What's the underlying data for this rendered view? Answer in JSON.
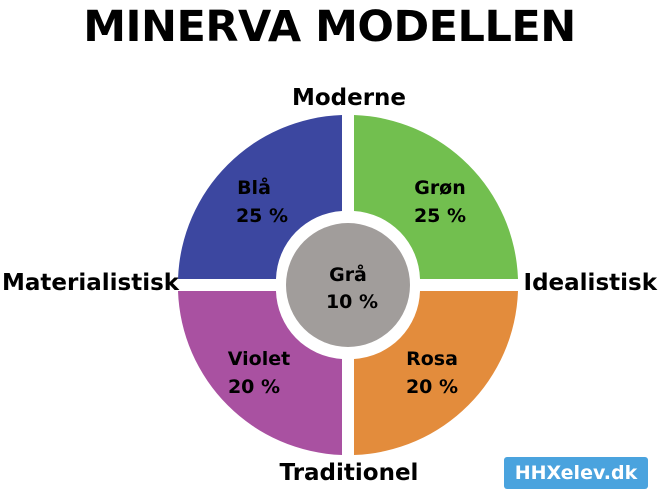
{
  "title": "MINERVA MODELLEN",
  "axes": {
    "top": "Moderne",
    "bottom": "Traditionel",
    "left": "Materialistisk",
    "right": "Idealistisk"
  },
  "segments": [
    {
      "id": "blaa",
      "name": "Blå",
      "percent": "25 %",
      "color": "#3c47a0"
    },
    {
      "id": "groen",
      "name": "Grøn",
      "percent": "25 %",
      "color": "#72bf4f"
    },
    {
      "id": "violet",
      "name": "Violet",
      "percent": "20 %",
      "color": "#a951a1"
    },
    {
      "id": "rosa",
      "name": "Rosa",
      "percent": "20 %",
      "color": "#e38c3c"
    }
  ],
  "center": {
    "name": "Grå",
    "percent": "10 %",
    "color": "#a19d9b"
  },
  "badge": "HHXelev.dk"
}
